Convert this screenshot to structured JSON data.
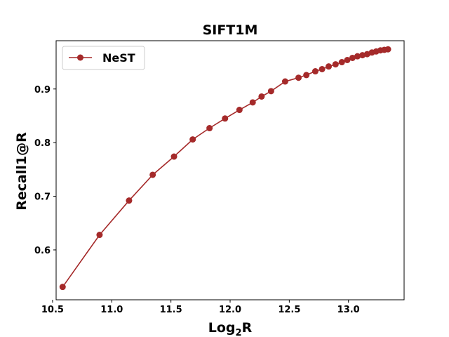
{
  "chart_data": {
    "type": "line",
    "title": "SIFT1M",
    "xlabel_base": "Log",
    "xlabel_sub": "2",
    "xlabel_tail": "R",
    "ylabel": "Recall1@R",
    "xlim": [
      10.53,
      13.47
    ],
    "ylim": [
      0.507,
      0.99
    ],
    "xticks": [
      10.5,
      11.0,
      11.5,
      12.0,
      12.5,
      13.0
    ],
    "xtick_labels": [
      "10.5",
      "11.0",
      "11.5",
      "12.0",
      "12.5",
      "13.0"
    ],
    "yticks": [
      0.6,
      0.7,
      0.8,
      0.9
    ],
    "ytick_labels": [
      "0.6",
      "0.7",
      "0.8",
      "0.9"
    ],
    "legend_position": "top-left",
    "series": [
      {
        "name": "NeST",
        "color": "#a52a2a",
        "x": [
          10.585,
          10.897,
          11.146,
          11.346,
          11.526,
          11.684,
          11.826,
          11.957,
          12.079,
          12.191,
          12.266,
          12.346,
          12.465,
          12.578,
          12.644,
          12.72,
          12.777,
          12.833,
          12.891,
          12.944,
          12.99,
          13.034,
          13.076,
          13.118,
          13.158,
          13.198,
          13.234,
          13.27,
          13.303,
          13.334
        ],
        "y": [
          0.531,
          0.628,
          0.692,
          0.74,
          0.774,
          0.806,
          0.827,
          0.845,
          0.861,
          0.875,
          0.886,
          0.896,
          0.914,
          0.921,
          0.926,
          0.933,
          0.937,
          0.942,
          0.946,
          0.95,
          0.954,
          0.958,
          0.961,
          0.963,
          0.965,
          0.968,
          0.97,
          0.972,
          0.973,
          0.974
        ]
      }
    ]
  }
}
